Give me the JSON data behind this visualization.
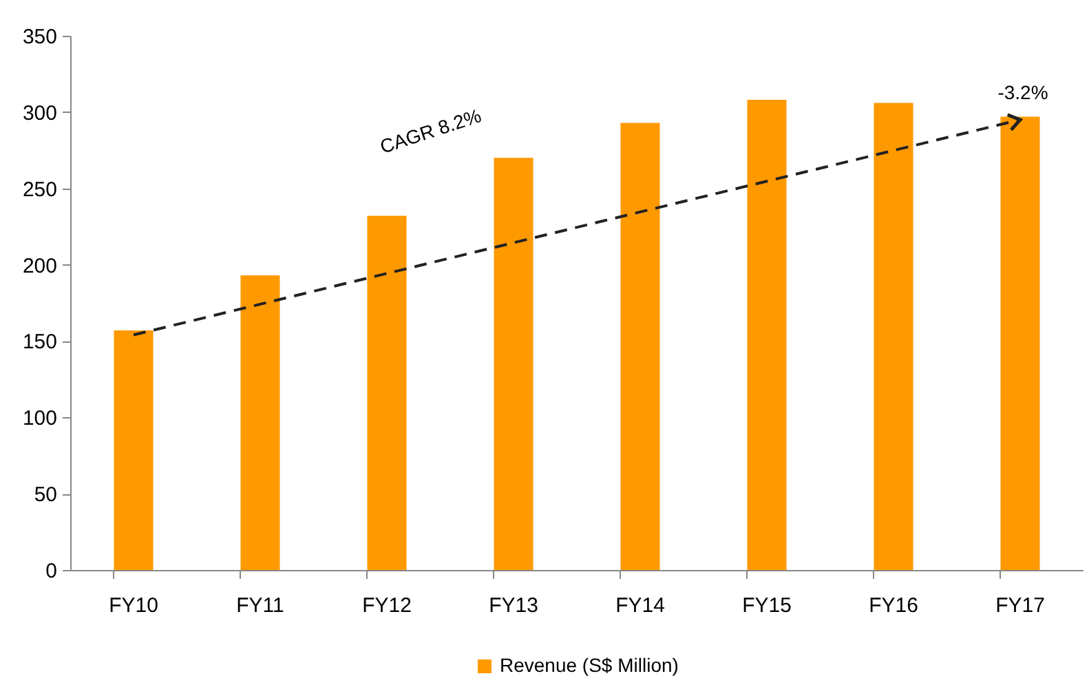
{
  "chart_data": {
    "type": "bar",
    "categories": [
      "FY10",
      "FY11",
      "FY12",
      "FY13",
      "FY14",
      "FY15",
      "FY16",
      "FY17"
    ],
    "series": [
      {
        "name": "Revenue (S$ Million)",
        "color": "#ff9900",
        "values": [
          157,
          193,
          232,
          270,
          293,
          308,
          306,
          297
        ]
      },
      {
        "type": "line",
        "x": [
          "FY10",
          "FY17"
        ],
        "values": [
          154,
          295
        ],
        "color": "#222222",
        "line_style": "dashed"
      }
    ],
    "annotations": [
      "CAGR 8.2%",
      "-3.2%"
    ],
    "ylim": [
      0,
      350
    ],
    "yticks": [
      0,
      50,
      100,
      150,
      200,
      250,
      300,
      350
    ],
    "grid": false,
    "legend": "bottom"
  }
}
